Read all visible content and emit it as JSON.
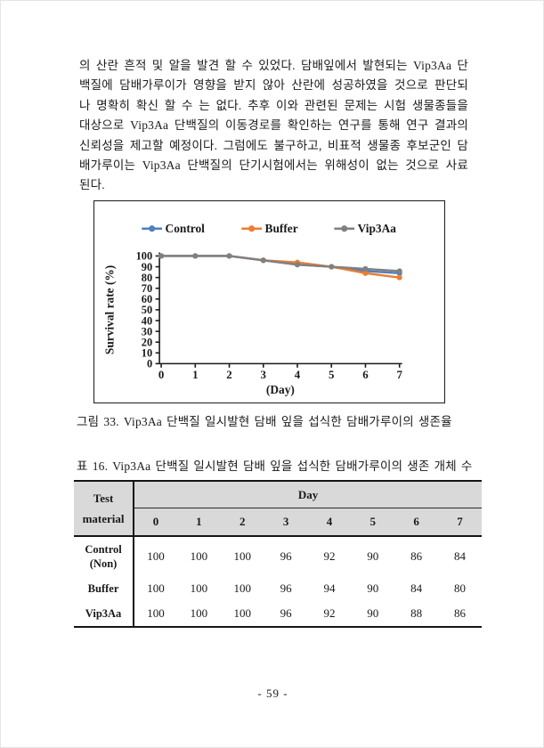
{
  "page": {
    "paragraph": "의 산란 흔적 및 알을 발견 할 수 있었다. 담배잎에서 발현되는 Vip3Aa 단백질에 담배가루이가 영향을 받지 않아 산란에 성공하였을 것으로 판단되나 명확히 확신 할 수 는 없다. 추후 이와 관련된 문제는 시험 생물종들을 대상으로 Vip3Aa 단백질의 이동경로를 확인하는 연구를 통해 연구 결과의 신뢰성을 제고할 예정이다. 그럼에도 불구하고, 비표적 생물종 후보군인 담배가루이는 Vip3Aa 단백질의 단기시험에서는 위해성이 없는 것으로 사료된다.",
    "figure_caption": "그림 33. Vip3Aa 단백질 일시발현 담배 잎을 섭식한 담배가루이의 생존율",
    "table_caption": "표 16. Vip3Aa 단백질 일시발현 담배 잎을 섭식한 담배가루이의 생존 개체 수",
    "page_number": "- 59 -"
  },
  "chart_data": {
    "type": "line",
    "x": [
      0,
      1,
      2,
      3,
      4,
      5,
      6,
      7
    ],
    "series": [
      {
        "name": "Control",
        "color": "#4E81BD",
        "values": [
          100,
          100,
          100,
          96,
          92,
          90,
          86,
          84
        ]
      },
      {
        "name": "Buffer",
        "color": "#ED7D31",
        "values": [
          100,
          100,
          100,
          96,
          94,
          90,
          84,
          80
        ]
      },
      {
        "name": "Vip3Aa",
        "color": "#808080",
        "values": [
          100,
          100,
          100,
          96,
          92,
          90,
          88,
          86
        ]
      }
    ],
    "title": "",
    "xlabel": "(Day)",
    "ylabel": "Survival rate (%)",
    "ylim": [
      0,
      100
    ],
    "yticks": [
      0,
      10,
      20,
      30,
      40,
      50,
      60,
      70,
      80,
      90,
      100
    ],
    "legend_position": "top",
    "grid": false
  },
  "table": {
    "corner_header": [
      "Test",
      "material"
    ],
    "group_header": "Day",
    "day_columns": [
      "0",
      "1",
      "2",
      "3",
      "4",
      "5",
      "6",
      "7"
    ],
    "rows": [
      {
        "label": [
          "Control",
          "(Non)"
        ],
        "values": [
          100,
          100,
          100,
          96,
          92,
          90,
          86,
          84
        ]
      },
      {
        "label": [
          "Buffer"
        ],
        "values": [
          100,
          100,
          100,
          96,
          94,
          90,
          84,
          80
        ]
      },
      {
        "label": [
          "Vip3Aa"
        ],
        "values": [
          100,
          100,
          100,
          96,
          92,
          90,
          88,
          86
        ]
      }
    ],
    "header_bg": "#D9D9D9"
  }
}
